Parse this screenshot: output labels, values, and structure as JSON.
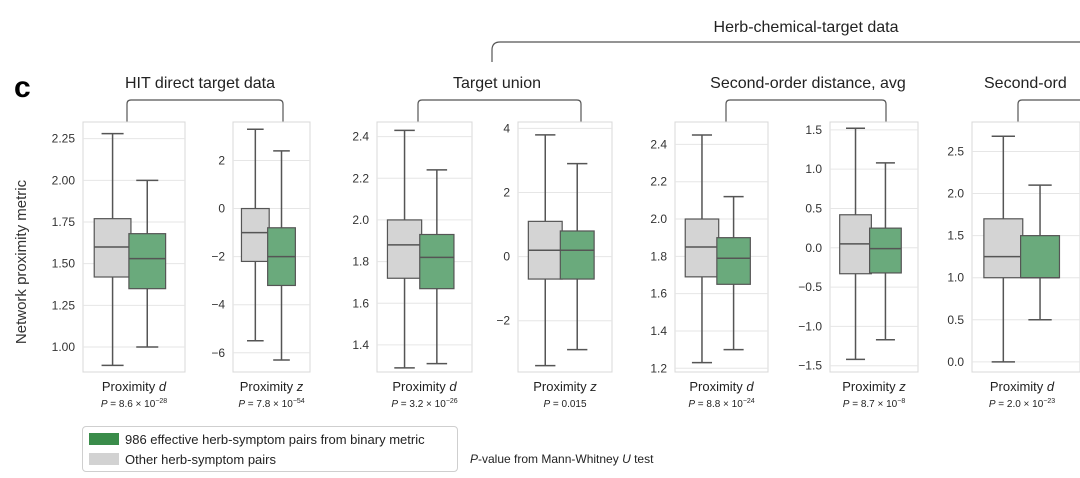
{
  "panel_letter": "c",
  "y_axis_label": "Network proximity metric",
  "top_group_label": "Herb-chemical-target data",
  "colors": {
    "effective": "#6aaa7c",
    "other": "#d4d4d4",
    "legend_effective": "#3a8c4a",
    "legend_other": "#d2d2d2"
  },
  "legend": {
    "effective": "986 effective herb-symptom pairs from binary metric",
    "other": "Other herb-symptom pairs"
  },
  "test_note": {
    "italic": "P",
    "text": "-value from Mann-Whitney ",
    "test_italic": "U",
    "suffix": " test"
  },
  "chart_data": [
    {
      "type": "box",
      "group": "HIT direct target data",
      "xlabel": "Proximity d",
      "pvalue": "P = 8.6 × 10^-28",
      "ylim": [
        0.85,
        2.35
      ],
      "yticks": [
        "1.00",
        "1.25",
        "1.50",
        "1.75",
        "2.00",
        "2.25"
      ],
      "boxes": [
        {
          "series": "Other herb-symptom pairs",
          "whislo": 0.89,
          "q1": 1.42,
          "med": 1.6,
          "q3": 1.77,
          "whishi": 2.28
        },
        {
          "series": "986 effective herb-symptom pairs from binary metric",
          "whislo": 1.0,
          "q1": 1.35,
          "med": 1.53,
          "q3": 1.68,
          "whishi": 2.0
        }
      ]
    },
    {
      "type": "box",
      "group": "HIT direct target data",
      "xlabel": "Proximity z",
      "pvalue": "P = 7.8 × 10^-54",
      "ylim": [
        -6.8,
        3.6
      ],
      "yticks": [
        "−6",
        "−4",
        "−2",
        "0",
        "2"
      ],
      "boxes": [
        {
          "series": "Other herb-symptom pairs",
          "whislo": -5.5,
          "q1": -2.2,
          "med": -1.0,
          "q3": 0.0,
          "whishi": 3.3
        },
        {
          "series": "986 effective herb-symptom pairs from binary metric",
          "whislo": -6.3,
          "q1": -3.2,
          "med": -2.0,
          "q3": -0.8,
          "whishi": 2.4
        }
      ]
    },
    {
      "type": "box",
      "group": "Target union",
      "xlabel": "Proximity d",
      "pvalue": "P = 3.2 × 10^-26",
      "ylim": [
        1.27,
        2.47
      ],
      "yticks": [
        "1.4",
        "1.6",
        "1.8",
        "2.0",
        "2.2",
        "2.4"
      ],
      "boxes": [
        {
          "series": "Other herb-symptom pairs",
          "whislo": 1.29,
          "q1": 1.72,
          "med": 1.88,
          "q3": 2.0,
          "whishi": 2.43
        },
        {
          "series": "986 effective herb-symptom pairs from binary metric",
          "whislo": 1.31,
          "q1": 1.67,
          "med": 1.82,
          "q3": 1.93,
          "whishi": 2.24
        }
      ]
    },
    {
      "type": "box",
      "group": "Target union",
      "xlabel": "Proximity z",
      "pvalue": "P = 0.015",
      "ylim": [
        -3.6,
        4.2
      ],
      "yticks": [
        "−2",
        "0",
        "2",
        "4"
      ],
      "boxes": [
        {
          "series": "Other herb-symptom pairs",
          "whislo": -3.4,
          "q1": -0.7,
          "med": 0.2,
          "q3": 1.1,
          "whishi": 3.8
        },
        {
          "series": "986 effective herb-symptom pairs from binary metric",
          "whislo": -2.9,
          "q1": -0.7,
          "med": 0.2,
          "q3": 0.8,
          "whishi": 2.9
        }
      ]
    },
    {
      "type": "box",
      "group": "Second-order distance, avg",
      "xlabel": "Proximity d",
      "pvalue": "P = 8.8 × 10^-24",
      "ylim": [
        1.18,
        2.52
      ],
      "yticks": [
        "1.2",
        "1.4",
        "1.6",
        "1.8",
        "2.0",
        "2.2",
        "2.4"
      ],
      "boxes": [
        {
          "series": "Other herb-symptom pairs",
          "whislo": 1.23,
          "q1": 1.69,
          "med": 1.85,
          "q3": 2.0,
          "whishi": 2.45
        },
        {
          "series": "986 effective herb-symptom pairs from binary metric",
          "whislo": 1.3,
          "q1": 1.65,
          "med": 1.79,
          "q3": 1.9,
          "whishi": 2.12
        }
      ]
    },
    {
      "type": "box",
      "group": "Second-order distance, avg",
      "xlabel": "Proximity z",
      "pvalue": "P = 8.7 × 10^-8",
      "ylim": [
        -1.58,
        1.6
      ],
      "yticks": [
        "−1.5",
        "−1.0",
        "−0.5",
        "0.0",
        "0.5",
        "1.0",
        "1.5"
      ],
      "boxes": [
        {
          "series": "Other herb-symptom pairs",
          "whislo": -1.42,
          "q1": -0.33,
          "med": 0.05,
          "q3": 0.42,
          "whishi": 1.52
        },
        {
          "series": "986 effective herb-symptom pairs from binary metric",
          "whislo": -1.17,
          "q1": -0.32,
          "med": -0.01,
          "q3": 0.25,
          "whishi": 1.08
        }
      ]
    },
    {
      "type": "box",
      "group": "Second-ord",
      "xlabel": "Proximity d",
      "pvalue": "P = 2.0 × 10^-23",
      "ylim": [
        -0.12,
        2.85
      ],
      "yticks": [
        "0.0",
        "0.5",
        "1.0",
        "1.5",
        "2.0",
        "2.5"
      ],
      "boxes": [
        {
          "series": "Other herb-symptom pairs",
          "whislo": 0.0,
          "q1": 1.0,
          "med": 1.25,
          "q3": 1.7,
          "whishi": 2.68
        },
        {
          "series": "986 effective herb-symptom pairs from binary metric",
          "whislo": 0.5,
          "q1": 1.0,
          "med": 1.0,
          "q3": 1.5,
          "whishi": 2.1
        }
      ]
    }
  ]
}
